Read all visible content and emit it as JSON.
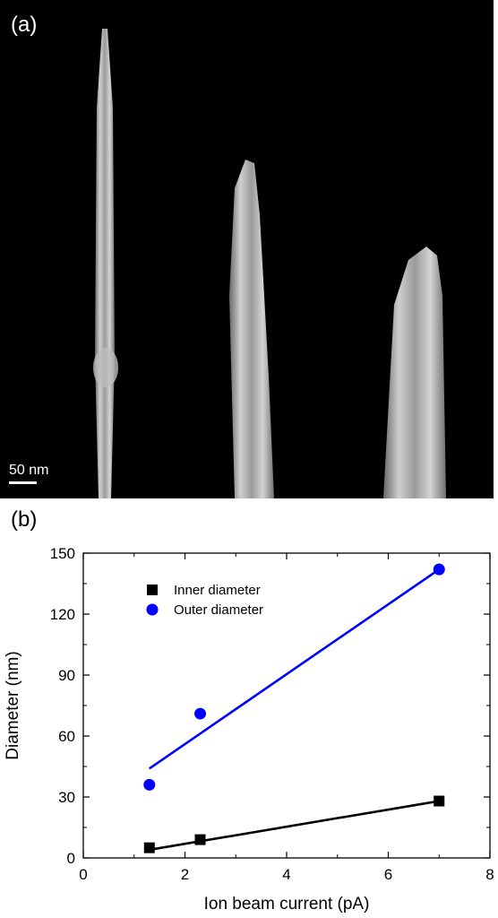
{
  "panel_a": {
    "label": "(a)",
    "scale_bar": "50 nm"
  },
  "panel_b": {
    "label": "(b)"
  },
  "chart_data": {
    "type": "scatter",
    "xlabel": "Ion beam current (pA)",
    "ylabel": "Diameter (nm)",
    "xlim": [
      0,
      8
    ],
    "ylim": [
      0,
      150
    ],
    "xticks": [
      "0",
      "2",
      "4",
      "6",
      "8"
    ],
    "yticks": [
      "0",
      "30",
      "60",
      "90",
      "120",
      "150"
    ],
    "legend_position": "top-left",
    "series": [
      {
        "name": "Inner diameter",
        "marker": "square",
        "color": "#000000",
        "x": [
          1.3,
          2.3,
          7.0
        ],
        "y": [
          5,
          9,
          28
        ],
        "fit": [
          [
            1.3,
            4
          ],
          [
            7.0,
            28
          ]
        ]
      },
      {
        "name": "Outer diameter",
        "marker": "circle",
        "color": "#0000ff",
        "x": [
          1.3,
          2.3,
          7.0
        ],
        "y": [
          36,
          71,
          142
        ],
        "fit": [
          [
            1.3,
            44
          ],
          [
            7.0,
            142
          ]
        ]
      }
    ]
  }
}
